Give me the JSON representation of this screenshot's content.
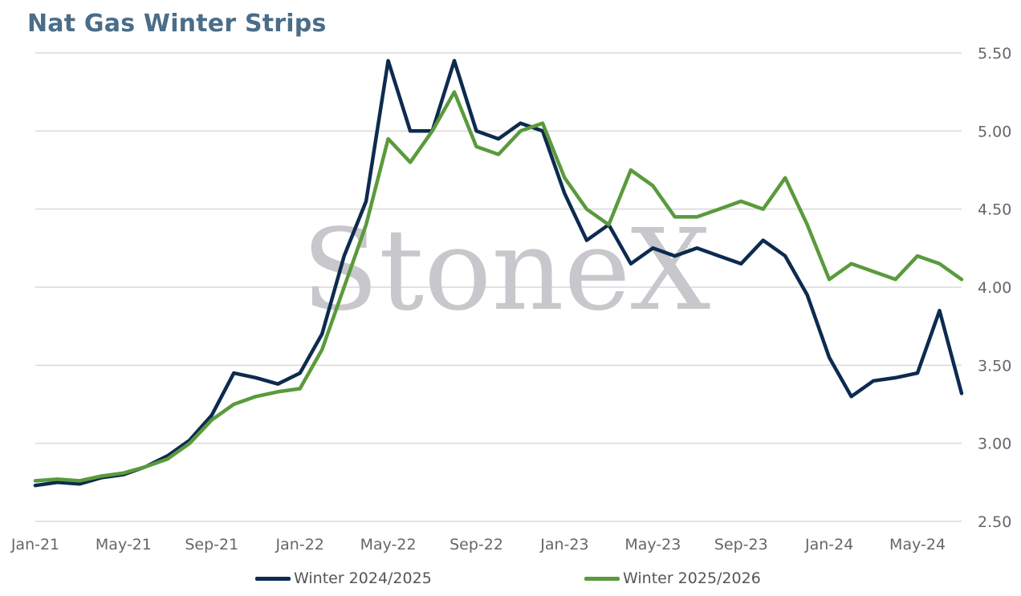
{
  "chart_data": {
    "type": "line",
    "title": "Nat Gas Winter Strips",
    "xlabel": "",
    "ylabel": "",
    "ylim": [
      2.5,
      5.5
    ],
    "y_ticks": [
      "5.50",
      "5.00",
      "4.50",
      "4.00",
      "3.50",
      "3.00",
      "2.50"
    ],
    "x_ticks": [
      "Jan-21",
      "May-21",
      "Sep-21",
      "Jan-22",
      "May-22",
      "Sep-22",
      "Jan-23",
      "May-23",
      "Sep-23",
      "Jan-24",
      "May-24"
    ],
    "grid": "horizontal",
    "legend": "bottom",
    "watermark": "StoneX",
    "watermark_mark": "®",
    "x": [
      "2021-01",
      "2021-02",
      "2021-03",
      "2021-04",
      "2021-05",
      "2021-06",
      "2021-07",
      "2021-08",
      "2021-09",
      "2021-10",
      "2021-11",
      "2021-12",
      "2022-01",
      "2022-02",
      "2022-03",
      "2022-04",
      "2022-05",
      "2022-06",
      "2022-07",
      "2022-08",
      "2022-09",
      "2022-10",
      "2022-11",
      "2022-12",
      "2023-01",
      "2023-02",
      "2023-03",
      "2023-04",
      "2023-05",
      "2023-06",
      "2023-07",
      "2023-08",
      "2023-09",
      "2023-10",
      "2023-11",
      "2023-12",
      "2024-01",
      "2024-02",
      "2024-03",
      "2024-04",
      "2024-05",
      "2024-06",
      "2024-07"
    ],
    "series": [
      {
        "name": "Winter 2024/2025",
        "color": "#0d2b4e",
        "values": [
          2.73,
          2.75,
          2.74,
          2.78,
          2.8,
          2.85,
          2.92,
          3.02,
          3.18,
          3.45,
          3.42,
          3.38,
          3.45,
          3.7,
          4.2,
          4.55,
          5.45,
          5.0,
          5.0,
          5.45,
          5.0,
          4.95,
          5.05,
          5.0,
          4.6,
          4.3,
          4.4,
          4.15,
          4.25,
          4.2,
          4.25,
          4.2,
          4.15,
          4.3,
          4.2,
          3.95,
          3.55,
          3.3,
          3.4,
          3.42,
          3.45,
          3.85,
          3.32
        ]
      },
      {
        "name": "Winter 2025/2026",
        "color": "#5a9a3c",
        "values": [
          2.76,
          2.77,
          2.76,
          2.79,
          2.81,
          2.85,
          2.9,
          3.0,
          3.15,
          3.25,
          3.3,
          3.33,
          3.35,
          3.6,
          4.0,
          4.4,
          4.95,
          4.8,
          5.0,
          5.25,
          4.9,
          4.85,
          5.0,
          5.05,
          4.7,
          4.5,
          4.4,
          4.75,
          4.65,
          4.45,
          4.45,
          4.5,
          4.55,
          4.5,
          4.7,
          4.4,
          4.05,
          4.15,
          4.1,
          4.05,
          4.2,
          4.15,
          4.05
        ]
      }
    ]
  }
}
